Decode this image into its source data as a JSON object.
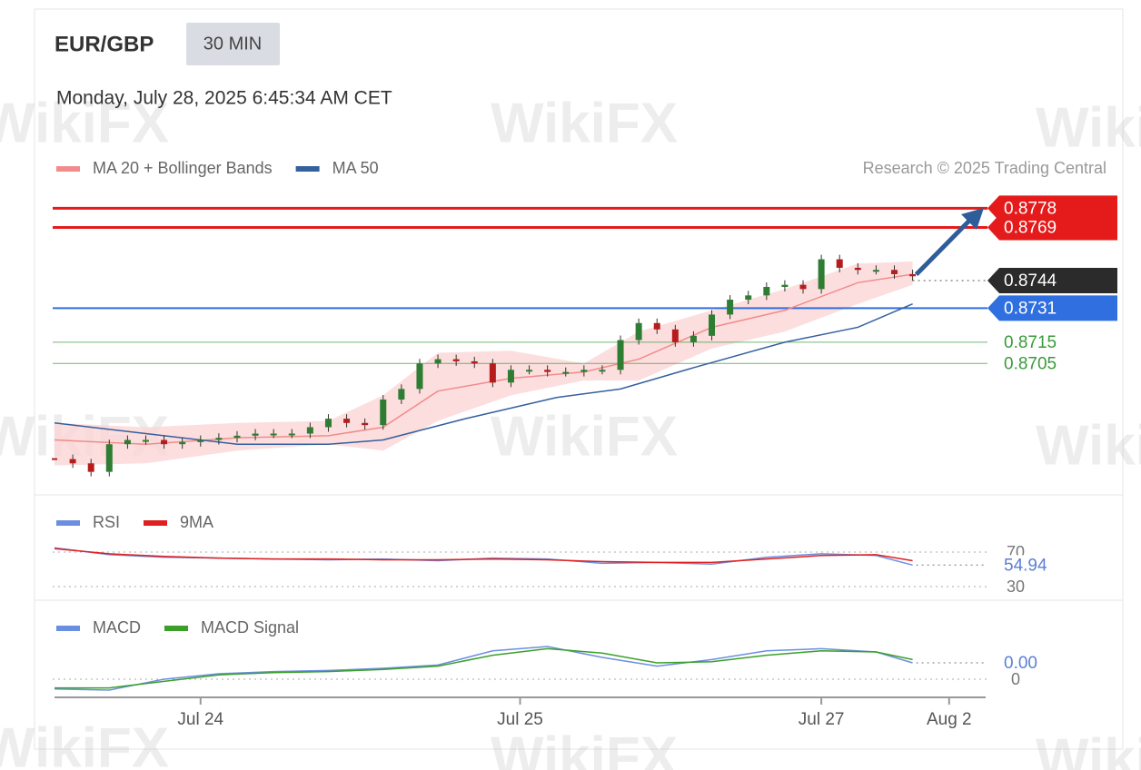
{
  "header": {
    "symbol": "EUR/GBP",
    "timeframe": "30 MIN",
    "timestamp": "Monday, July 28, 2025 6:45:34 AM CET",
    "credit": "Research © 2025 Trading Central",
    "watermark": "WikiFX"
  },
  "xaxis": {
    "xlim": [
      0,
      102
    ],
    "xticks": [
      {
        "value": 16,
        "label": "Jul 24"
      },
      {
        "value": 51,
        "label": "Jul 25"
      },
      {
        "value": 84,
        "label": "Jul 27"
      },
      {
        "value": 98,
        "label": "Aug 2"
      }
    ]
  },
  "chart_data": [
    {
      "type": "candlestick",
      "ylim": [
        0.865,
        0.8785
      ],
      "up_color": "#2e7d32",
      "down_color": "#b71c1c",
      "closes": {
        "x": [
          0,
          2,
          4,
          6,
          8,
          10,
          12,
          14,
          16,
          18,
          20,
          22,
          24,
          26,
          28,
          30,
          32,
          34,
          36,
          38,
          40,
          42,
          44,
          46,
          48,
          50,
          52,
          54,
          56,
          58,
          60,
          62,
          64,
          66,
          68,
          70,
          72,
          74,
          76,
          78,
          80,
          82,
          84,
          86,
          88,
          90,
          92,
          94
        ],
        "values": [
          0.866,
          0.8658,
          0.8654,
          0.8667,
          0.8669,
          0.8669,
          0.8667,
          0.8668,
          0.8669,
          0.867,
          0.8671,
          0.8672,
          0.8672,
          0.8672,
          0.8675,
          0.8679,
          0.8677,
          0.8676,
          0.8688,
          0.8693,
          0.8705,
          0.8707,
          0.8706,
          0.8705,
          0.8696,
          0.8702,
          0.8702,
          0.8701,
          0.8701,
          0.8702,
          0.8702,
          0.8716,
          0.8724,
          0.8721,
          0.8715,
          0.8718,
          0.8728,
          0.8735,
          0.8737,
          0.8741,
          0.8742,
          0.874,
          0.8754,
          0.875,
          0.8749,
          0.8749,
          0.8747,
          0.8746
        ]
      },
      "series": [
        {
          "name": "MA 20 + Bollinger Bands",
          "color": "#f28b8b",
          "band_color": "#fbd3d3",
          "x": [
            0,
            10,
            20,
            30,
            36,
            42,
            50,
            58,
            64,
            72,
            80,
            88,
            94
          ],
          "values": [
            0.8669,
            0.8667,
            0.867,
            0.8671,
            0.8675,
            0.8692,
            0.8698,
            0.8701,
            0.8707,
            0.8722,
            0.873,
            0.8743,
            0.8747
          ],
          "upper": [
            0.8677,
            0.8675,
            0.8677,
            0.8678,
            0.869,
            0.871,
            0.8711,
            0.8705,
            0.872,
            0.873,
            0.874,
            0.8752,
            0.8753
          ],
          "lower": [
            0.8657,
            0.8658,
            0.8664,
            0.8667,
            0.8664,
            0.8678,
            0.869,
            0.8697,
            0.8697,
            0.8712,
            0.872,
            0.8733,
            0.8742
          ]
        },
        {
          "name": "MA 50",
          "color": "#34609e",
          "x": [
            0,
            10,
            20,
            30,
            36,
            45,
            55,
            62,
            70,
            80,
            88,
            94
          ],
          "values": [
            0.8677,
            0.8672,
            0.8667,
            0.8667,
            0.8669,
            0.8679,
            0.8689,
            0.8693,
            0.8703,
            0.8715,
            0.8722,
            0.8733
          ]
        }
      ],
      "levels": [
        {
          "value": 0.8778,
          "color": "#e51b1b",
          "tag": true,
          "width": 3
        },
        {
          "value": 0.8769,
          "color": "#e51b1b",
          "tag": true,
          "width": 3
        },
        {
          "value": 0.8744,
          "color": "#2b2b2b",
          "tag": true,
          "width": 0
        },
        {
          "value": 0.8731,
          "color": "#2f6fe0",
          "tag": true,
          "width": 2
        },
        {
          "value": 0.8715,
          "color": "#3a9a3a",
          "tag": false,
          "width": 1
        },
        {
          "value": 0.8705,
          "color": "#3a9a3a",
          "tag": false,
          "width": 1
        }
      ]
    },
    {
      "type": "line",
      "ylim": [
        20,
        80
      ],
      "yticks": [
        30,
        70
      ],
      "last_color": "#5b7fd6",
      "x": [
        0,
        6,
        12,
        18,
        24,
        30,
        36,
        42,
        48,
        54,
        60,
        66,
        72,
        78,
        84,
        90,
        94
      ],
      "series": [
        {
          "name": "RSI",
          "color": "#6b8fe0",
          "values": [
            75,
            67,
            64,
            63,
            62,
            61,
            62,
            60,
            63,
            62,
            57,
            58,
            56,
            64,
            68,
            66,
            54.94
          ]
        },
        {
          "name": "9MA",
          "color": "#e02020",
          "values": [
            74,
            68,
            65,
            63,
            62,
            62,
            61,
            61,
            62,
            61,
            59,
            58,
            58,
            62,
            66,
            67,
            60
          ]
        }
      ]
    },
    {
      "type": "line",
      "ylim": [
        -0.00012,
        0.00036
      ],
      "yticks": [
        0
      ],
      "last_color": "#5b7fd6",
      "last_label": "0.00",
      "x": [
        0,
        6,
        12,
        18,
        24,
        30,
        36,
        42,
        48,
        54,
        60,
        66,
        72,
        78,
        84,
        90,
        94
      ],
      "series": [
        {
          "name": "MACD",
          "color": "#6b8fe0",
          "values": [
            -9e-05,
            -0.0001,
            0,
            5e-05,
            7e-05,
            8e-05,
            0.0001,
            0.00013,
            0.00026,
            0.0003,
            0.0002,
            0.00012,
            0.00018,
            0.00026,
            0.00028,
            0.00025,
            0.00015
          ]
        },
        {
          "name": "MACD Signal",
          "color": "#3aa02a",
          "values": [
            -8e-05,
            -8e-05,
            -2e-05,
            4e-05,
            6e-05,
            7e-05,
            9e-05,
            0.00012,
            0.00022,
            0.00028,
            0.00024,
            0.00015,
            0.00016,
            0.00022,
            0.00026,
            0.00025,
            0.00018
          ]
        }
      ]
    }
  ]
}
